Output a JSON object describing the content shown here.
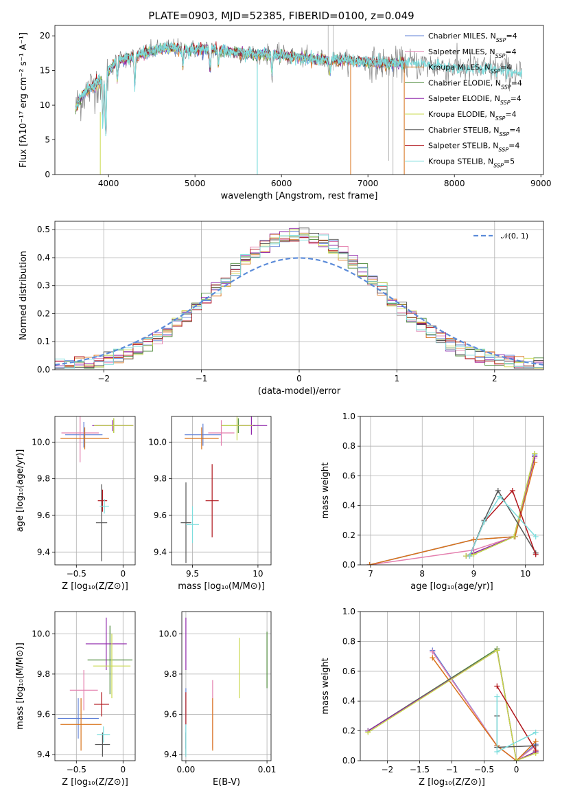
{
  "colors": {
    "Chabrier MILES": "#5d7fd6",
    "Salpeter MILES": "#e47fae",
    "Kroupa MILES": "#d9731a",
    "Chabrier ELODIE": "#4c8a3a",
    "Salpeter ELODIE": "#8e24aa",
    "Kroupa ELODIE": "#c9d84c",
    "Chabrier STELIB": "#555555",
    "Salpeter STELIB": "#b0151b",
    "Kroupa STELIB": "#7edddd"
  },
  "chart_data": [
    {
      "id": "spectrum",
      "type": "line",
      "title": "PLATE=0903, MJD=52385, FIBERID=0100, z=0.049",
      "xlabel": "wavelength [Angstrom, rest frame]",
      "ylabel": "Flux [fλ10⁻¹⁷ erg cm⁻² s⁻¹ A⁻¹]",
      "xlim": [
        3380,
        9030
      ],
      "ylim": [
        0,
        21.5
      ],
      "xticks": [
        4000,
        5000,
        6000,
        7000,
        8000,
        9000
      ],
      "yticks": [
        0,
        5,
        10,
        15,
        20
      ],
      "grid": false,
      "legend_position": "top-right",
      "legend": [
        {
          "name": "Chabrier MILES",
          "label": "Chabrier MILES, N",
          "sub": "SSP",
          "tail": "=4"
        },
        {
          "name": "Salpeter MILES",
          "label": "Salpeter MILES, N",
          "sub": "SSP",
          "tail": "=4"
        },
        {
          "name": "Kroupa MILES",
          "label": "Kroupa MILES, N",
          "sub": "SSP",
          "tail": "=4"
        },
        {
          "name": "Chabrier ELODIE",
          "label": "Chabrier ELODIE, N",
          "sub": "SSP",
          "tail": "=4"
        },
        {
          "name": "Salpeter ELODIE",
          "label": "Salpeter ELODIE, N",
          "sub": "SSP",
          "tail": "=4"
        },
        {
          "name": "Kroupa ELODIE",
          "label": "Kroupa ELODIE, N",
          "sub": "SSP",
          "tail": "=4"
        },
        {
          "name": "Chabrier STELIB",
          "label": "Chabrier STELIB, N",
          "sub": "SSP",
          "tail": "=4"
        },
        {
          "name": "Salpeter STELIB",
          "label": "Salpeter STELIB, N",
          "sub": "SSP",
          "tail": "=4"
        },
        {
          "name": "Kroupa STELIB",
          "label": "Kroupa STELIB, N",
          "sub": "SSP",
          "tail": "=5"
        }
      ],
      "continuum": {
        "x": [
          3620,
          3700,
          3800,
          3900,
          3950,
          4000,
          4100,
          4300,
          4500,
          4700,
          4900,
          5100,
          5300,
          5500,
          5700,
          5900,
          6100,
          6300,
          6500,
          6700,
          6900,
          7100,
          7300,
          7500,
          7700,
          7900,
          8100,
          8300,
          8500,
          8700,
          8780
        ],
        "y": [
          9.5,
          11.5,
          12.5,
          13.5,
          13.0,
          15.0,
          16.5,
          17.0,
          17.8,
          18.3,
          18.0,
          18.1,
          17.8,
          17.6,
          17.3,
          17.3,
          17.0,
          16.8,
          16.5,
          16.5,
          16.3,
          16.0,
          16.0,
          16.0,
          15.8,
          15.5,
          15.3,
          15.2,
          15.2,
          14.8,
          14.6
        ]
      },
      "absorption_features": [
        {
          "x": 3934,
          "depth": 6.0
        },
        {
          "x": 3969,
          "depth": 8.5
        },
        {
          "x": 4102,
          "depth": 3.0
        },
        {
          "x": 4304,
          "depth": 4.5
        },
        {
          "x": 4861,
          "depth": 2.5
        },
        {
          "x": 5175,
          "depth": 3.0
        },
        {
          "x": 5270,
          "depth": 2.0
        },
        {
          "x": 5890,
          "depth": 3.0
        },
        {
          "x": 6563,
          "depth": 2.0
        }
      ],
      "data_spikes": [
        {
          "x": 5720,
          "y0": 0,
          "y1": 17
        },
        {
          "x": 6800,
          "y0": 0,
          "y1": 17
        },
        {
          "x": 6540,
          "y0": 15,
          "y1": 21.5
        },
        {
          "x": 6600,
          "y0": 15,
          "y1": 21.5
        },
        {
          "x": 7240,
          "y0": 2,
          "y1": 17
        },
        {
          "x": 7290,
          "y0": 0,
          "y1": 17
        },
        {
          "x": 7420,
          "y0": 0,
          "y1": 17
        }
      ]
    },
    {
      "id": "residuals",
      "type": "histogram",
      "xlabel": "(data-model)/error",
      "ylabel": "Normed distribution",
      "xlim": [
        -2.5,
        2.5
      ],
      "ylim": [
        0,
        0.53
      ],
      "xticks": [
        -2,
        -1,
        0,
        1,
        2
      ],
      "yticks": [
        0.0,
        0.1,
        0.2,
        0.3,
        0.4,
        0.5
      ],
      "grid": true,
      "legend_position": "top-right",
      "reference_curve": {
        "label": "𝒩(0, 1)",
        "mean": 0,
        "sigma": 1,
        "color": "#5b8bd9",
        "style": "dashed"
      },
      "bin_edges_start": -2.5,
      "bin_width": 0.1,
      "histogram_shape": "normal-like, peak ≈0.45–0.50 near 0, tails ≈0.01–0.02 at ±2.5"
    },
    {
      "id": "age-vs-Z",
      "type": "errorbar",
      "xlabel": "Z [log₁₀(Z/Z⊙)]",
      "ylabel": "age  [log₁₀(age/yr)]",
      "xlim": [
        -0.73,
        0.13
      ],
      "ylim": [
        9.33,
        10.14
      ],
      "xticks": [
        -0.5,
        0.0
      ],
      "yticks": [
        9.4,
        9.6,
        9.8,
        10.0
      ],
      "grid": true,
      "points": [
        {
          "name": "Chabrier MILES",
          "x": -0.42,
          "xerr": 0.2,
          "y": 10.04,
          "yerr": 0.07
        },
        {
          "name": "Salpeter MILES",
          "x": -0.46,
          "xerr": 0.2,
          "y": 10.05,
          "yerr": 0.16
        },
        {
          "name": "Kroupa MILES",
          "x": -0.41,
          "xerr": 0.26,
          "y": 10.02,
          "yerr": 0.06
        },
        {
          "name": "Chabrier ELODIE",
          "x": -0.1,
          "xerr": 0.2,
          "y": 10.09,
          "yerr": 0.04
        },
        {
          "name": "Salpeter ELODIE",
          "x": -0.11,
          "xerr": 0.22,
          "y": 10.09,
          "yerr": 0.03
        },
        {
          "name": "Kroupa ELODIE",
          "x": -0.1,
          "xerr": 0.21,
          "y": 10.09,
          "yerr": 0.04
        },
        {
          "name": "Chabrier STELIB",
          "x": -0.23,
          "xerr": 0.06,
          "y": 9.56,
          "yerr": 0.21
        },
        {
          "name": "Salpeter STELIB",
          "x": -0.22,
          "xerr": 0.05,
          "y": 9.68,
          "yerr": 0.06
        },
        {
          "name": "Kroupa STELIB",
          "x": -0.2,
          "xerr": 0.05,
          "y": 9.65,
          "yerr": 0.04
        }
      ]
    },
    {
      "id": "age-vs-mass",
      "type": "errorbar",
      "xlabel": "mass [log₁₀(M/M⊙)]",
      "ylabel": "",
      "xlim": [
        9.34,
        10.1
      ],
      "ylim": [
        9.33,
        10.14
      ],
      "xticks": [
        9.5,
        10.0
      ],
      "yticks": [
        9.4,
        9.6,
        9.8,
        10.0
      ],
      "grid": true,
      "points": [
        {
          "name": "Chabrier MILES",
          "x": 9.58,
          "xerr": 0.14,
          "y": 10.04,
          "yerr": 0.06
        },
        {
          "name": "Salpeter MILES",
          "x": 9.72,
          "xerr": 0.1,
          "y": 10.05,
          "yerr": 0.07
        },
        {
          "name": "Kroupa MILES",
          "x": 9.57,
          "xerr": 0.13,
          "y": 10.02,
          "yerr": 0.06
        },
        {
          "name": "Chabrier ELODIE",
          "x": 9.85,
          "xerr": 0.13,
          "y": 10.09,
          "yerr": 0.04
        },
        {
          "name": "Salpeter ELODIE",
          "x": 9.95,
          "xerr": 0.12,
          "y": 10.09,
          "yerr": 0.05
        },
        {
          "name": "Kroupa ELODIE",
          "x": 9.84,
          "xerr": 0.12,
          "y": 10.09,
          "yerr": 0.08
        },
        {
          "name": "Chabrier STELIB",
          "x": 9.45,
          "xerr": 0.04,
          "y": 9.56,
          "yerr": 0.22
        },
        {
          "name": "Salpeter STELIB",
          "x": 9.65,
          "xerr": 0.05,
          "y": 9.68,
          "yerr": 0.2
        },
        {
          "name": "Kroupa STELIB",
          "x": 9.5,
          "xerr": 0.05,
          "y": 9.55,
          "yerr": 0.1
        }
      ]
    },
    {
      "id": "mass-weight-vs-age",
      "type": "line",
      "xlabel": "age  [log₁₀(age/yr)]",
      "ylabel": "mass weight",
      "xlim": [
        6.8,
        10.35
      ],
      "ylim": [
        0,
        1.0
      ],
      "xticks": [
        7,
        8,
        9,
        10
      ],
      "yticks": [
        0.0,
        0.2,
        0.4,
        0.6,
        0.8,
        1.0
      ],
      "grid": true,
      "series": [
        {
          "name": "Chabrier MILES",
          "x": [
            6.98,
            9.0,
            9.8,
            10.18
          ],
          "y": [
            0.0,
            0.17,
            0.19,
            0.74
          ]
        },
        {
          "name": "Salpeter MILES",
          "x": [
            6.98,
            9.0,
            9.78,
            10.18
          ],
          "y": [
            0.0,
            0.1,
            0.19,
            0.72
          ]
        },
        {
          "name": "Kroupa MILES",
          "x": [
            6.98,
            9.0,
            9.8,
            10.18
          ],
          "y": [
            0.0,
            0.17,
            0.19,
            0.69
          ]
        },
        {
          "name": "Chabrier ELODIE",
          "x": [
            8.85,
            9.0,
            9.78,
            10.18
          ],
          "y": [
            0.06,
            0.07,
            0.19,
            0.75
          ]
        },
        {
          "name": "Salpeter ELODIE",
          "x": [
            8.85,
            9.0,
            9.78,
            10.18
          ],
          "y": [
            0.06,
            0.08,
            0.19,
            0.73
          ]
        },
        {
          "name": "Kroupa ELODIE",
          "x": [
            8.85,
            9.0,
            9.78,
            10.18
          ],
          "y": [
            0.06,
            0.07,
            0.19,
            0.75
          ]
        },
        {
          "name": "Chabrier STELIB",
          "x": [
            8.92,
            9.2,
            9.47,
            10.2
          ],
          "y": [
            0.06,
            0.3,
            0.5,
            0.08
          ]
        },
        {
          "name": "Salpeter STELIB",
          "x": [
            8.92,
            9.2,
            9.75,
            10.2
          ],
          "y": [
            0.06,
            0.29,
            0.5,
            0.07
          ]
        },
        {
          "name": "Kroupa STELIB",
          "x": [
            8.92,
            9.2,
            9.5,
            10.2
          ],
          "y": [
            0.06,
            0.29,
            0.46,
            0.19
          ]
        }
      ]
    },
    {
      "id": "mass-vs-Z",
      "type": "errorbar",
      "xlabel": "Z [log₁₀(Z/Z⊙)]",
      "ylabel": "mass [log₁₀(M/M⊙)]",
      "xlim": [
        -0.73,
        0.13
      ],
      "ylim": [
        9.37,
        10.11
      ],
      "xticks": [
        -0.5,
        0.0
      ],
      "yticks": [
        9.4,
        9.6,
        9.8,
        10.0
      ],
      "grid": true,
      "points": [
        {
          "name": "Chabrier MILES",
          "x": -0.48,
          "xerr": 0.22,
          "y": 9.58,
          "yerr": 0.1
        },
        {
          "name": "Salpeter MILES",
          "x": -0.42,
          "xerr": 0.15,
          "y": 9.72,
          "yerr": 0.1
        },
        {
          "name": "Kroupa MILES",
          "x": -0.45,
          "xerr": 0.22,
          "y": 9.55,
          "yerr": 0.13
        },
        {
          "name": "Chabrier ELODIE",
          "x": -0.14,
          "xerr": 0.24,
          "y": 9.87,
          "yerr": 0.17
        },
        {
          "name": "Salpeter ELODIE",
          "x": -0.18,
          "xerr": 0.22,
          "y": 9.95,
          "yerr": 0.13
        },
        {
          "name": "Kroupa ELODIE",
          "x": -0.12,
          "xerr": 0.2,
          "y": 9.84,
          "yerr": 0.16
        },
        {
          "name": "Chabrier STELIB",
          "x": -0.22,
          "xerr": 0.08,
          "y": 9.45,
          "yerr": 0.06
        },
        {
          "name": "Salpeter STELIB",
          "x": -0.23,
          "xerr": 0.08,
          "y": 9.65,
          "yerr": 0.06
        },
        {
          "name": "Kroupa STELIB",
          "x": -0.21,
          "xerr": 0.07,
          "y": 9.5,
          "yerr": 0.04
        }
      ]
    },
    {
      "id": "mass-vs-ebv",
      "type": "errorbar",
      "xlabel": "E(B-V)",
      "ylabel": "",
      "xlim": [
        -0.0005,
        0.0105
      ],
      "ylim": [
        9.37,
        10.11
      ],
      "xticks": [
        0.0,
        0.01
      ],
      "xticklabels": [
        "0.00",
        "0.01"
      ],
      "yticks": [
        9.4,
        9.6,
        9.8,
        10.0
      ],
      "grid": true,
      "points": [
        {
          "name": "Chabrier MILES",
          "x": 0.0,
          "xerr": 0,
          "y": 9.58,
          "yerr": 0.15
        },
        {
          "name": "Salpeter MILES",
          "x": 0.0033,
          "xerr": 0,
          "y": 9.6,
          "yerr": 0.17
        },
        {
          "name": "Kroupa MILES",
          "x": 0.0033,
          "xerr": 0,
          "y": 9.55,
          "yerr": 0.13
        },
        {
          "name": "Chabrier ELODIE",
          "x": 0.01,
          "xerr": 0,
          "y": 9.87,
          "yerr": 0.14
        },
        {
          "name": "Salpeter ELODIE",
          "x": 0.0,
          "xerr": 0,
          "y": 9.95,
          "yerr": 0.13
        },
        {
          "name": "Kroupa ELODIE",
          "x": 0.0066,
          "xerr": 0,
          "y": 9.83,
          "yerr": 0.15
        },
        {
          "name": "Chabrier STELIB",
          "x": 0.0,
          "xerr": 0,
          "y": 9.45,
          "yerr": 0.06
        },
        {
          "name": "Salpeter STELIB",
          "x": 0.0,
          "xerr": 0,
          "y": 9.63,
          "yerr": 0.08
        },
        {
          "name": "Kroupa STELIB",
          "x": 0.0,
          "xerr": 0,
          "y": 9.47,
          "yerr": 0.08
        }
      ]
    },
    {
      "id": "mass-weight-vs-Z",
      "type": "line",
      "xlabel": "Z [log₁₀(Z/Z⊙)]",
      "ylabel": "mass weight",
      "xlim": [
        -2.42,
        0.42
      ],
      "ylim": [
        0,
        1.0
      ],
      "xticks": [
        -2.0,
        -1.5,
        -1.0,
        -0.5,
        0.0
      ],
      "yticks": [
        0.0,
        0.2,
        0.4,
        0.6,
        0.8,
        1.0
      ],
      "grid": true,
      "series": [
        {
          "name": "Chabrier MILES",
          "x": [
            -1.3,
            -0.3,
            0.0,
            0.3
          ],
          "y": [
            0.74,
            0.1,
            0.0,
            0.11
          ]
        },
        {
          "name": "Salpeter MILES",
          "x": [
            -1.3,
            -0.3,
            0.0,
            0.3
          ],
          "y": [
            0.73,
            0.1,
            0.0,
            0.1
          ]
        },
        {
          "name": "Kroupa MILES",
          "x": [
            -1.3,
            -0.3,
            0.0,
            0.3
          ],
          "y": [
            0.69,
            0.1,
            0.0,
            0.13
          ]
        },
        {
          "name": "Chabrier ELODIE",
          "x": [
            -2.3,
            -0.3,
            0.0,
            0.3
          ],
          "y": [
            0.2,
            0.75,
            0.0,
            0.06
          ]
        },
        {
          "name": "Salpeter ELODIE",
          "x": [
            -2.3,
            -0.3,
            0.0,
            0.3
          ],
          "y": [
            0.2,
            0.74,
            0.0,
            0.06
          ]
        },
        {
          "name": "Kroupa ELODIE",
          "x": [
            -2.3,
            -0.3,
            0.0,
            0.3
          ],
          "y": [
            0.19,
            0.74,
            0.0,
            0.05
          ]
        },
        {
          "name": "Chabrier STELIB",
          "x": [
            -0.3,
            -0.3,
            0.3
          ],
          "y": [
            0.3,
            0.09,
            0.1
          ]
        },
        {
          "name": "Salpeter STELIB",
          "x": [
            -0.3,
            0.3
          ],
          "y": [
            0.5,
            0.07
          ]
        },
        {
          "name": "Kroupa STELIB",
          "x": [
            -0.3,
            -0.3,
            0.3
          ],
          "y": [
            0.43,
            0.06,
            0.19
          ]
        }
      ]
    }
  ]
}
